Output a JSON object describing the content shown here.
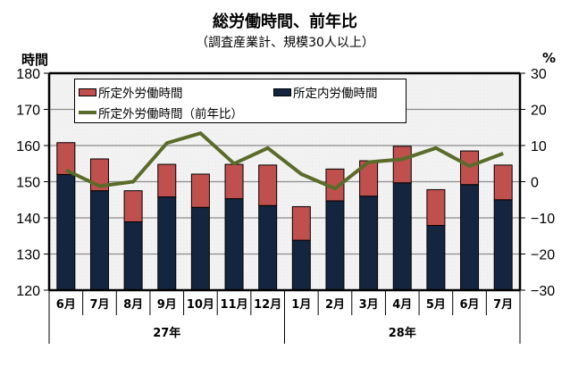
{
  "chart_data": {
    "type": "bar",
    "title": "総労働時間、前年比",
    "subtitle": "（調査産業計、規模30人以上）",
    "ylabel_left": "時間",
    "ylabel_right": "%",
    "ylim_left": [
      120,
      180
    ],
    "ylim_right": [
      -30,
      30
    ],
    "yticks_left": [
      "180",
      "170",
      "160",
      "150",
      "140",
      "130",
      "120"
    ],
    "yticks_right": [
      "30",
      "20",
      "10",
      "0",
      "−10",
      "−20",
      "−30"
    ],
    "grid": true,
    "legend_position": "top-left",
    "categories": [
      "6月",
      "7月",
      "8月",
      "9月",
      "10月",
      "11月",
      "12月",
      "1月",
      "2月",
      "3月",
      "4月",
      "5月",
      "6月",
      "7月"
    ],
    "groups": [
      {
        "label": "27年",
        "count": 7
      },
      {
        "label": "28年",
        "count": 7
      }
    ],
    "series": [
      {
        "name": "所定外労働時間",
        "kind": "stacked-bar-top",
        "axis": "left",
        "color": "#C0504D",
        "values": [
          8.8,
          8.8,
          8.6,
          9.0,
          9.2,
          9.5,
          11.2,
          9.3,
          8.8,
          9.8,
          10.1,
          9.9,
          9.3,
          9.6
        ]
      },
      {
        "name": "所定内労働時間",
        "kind": "stacked-bar-base",
        "axis": "left",
        "color": "#14253F",
        "values": [
          152.0,
          147.5,
          138.9,
          145.8,
          142.9,
          145.3,
          143.4,
          133.8,
          144.7,
          146.0,
          149.7,
          137.9,
          149.2,
          145.0
        ]
      },
      {
        "name": "所定外労働時間（前年比）",
        "kind": "line",
        "axis": "right",
        "color": "#5A6B2A",
        "values": [
          3.2,
          -1.2,
          0.0,
          10.7,
          13.4,
          5.0,
          9.3,
          2.1,
          -1.9,
          5.4,
          6.2,
          9.3,
          4.3,
          7.8
        ]
      }
    ]
  }
}
